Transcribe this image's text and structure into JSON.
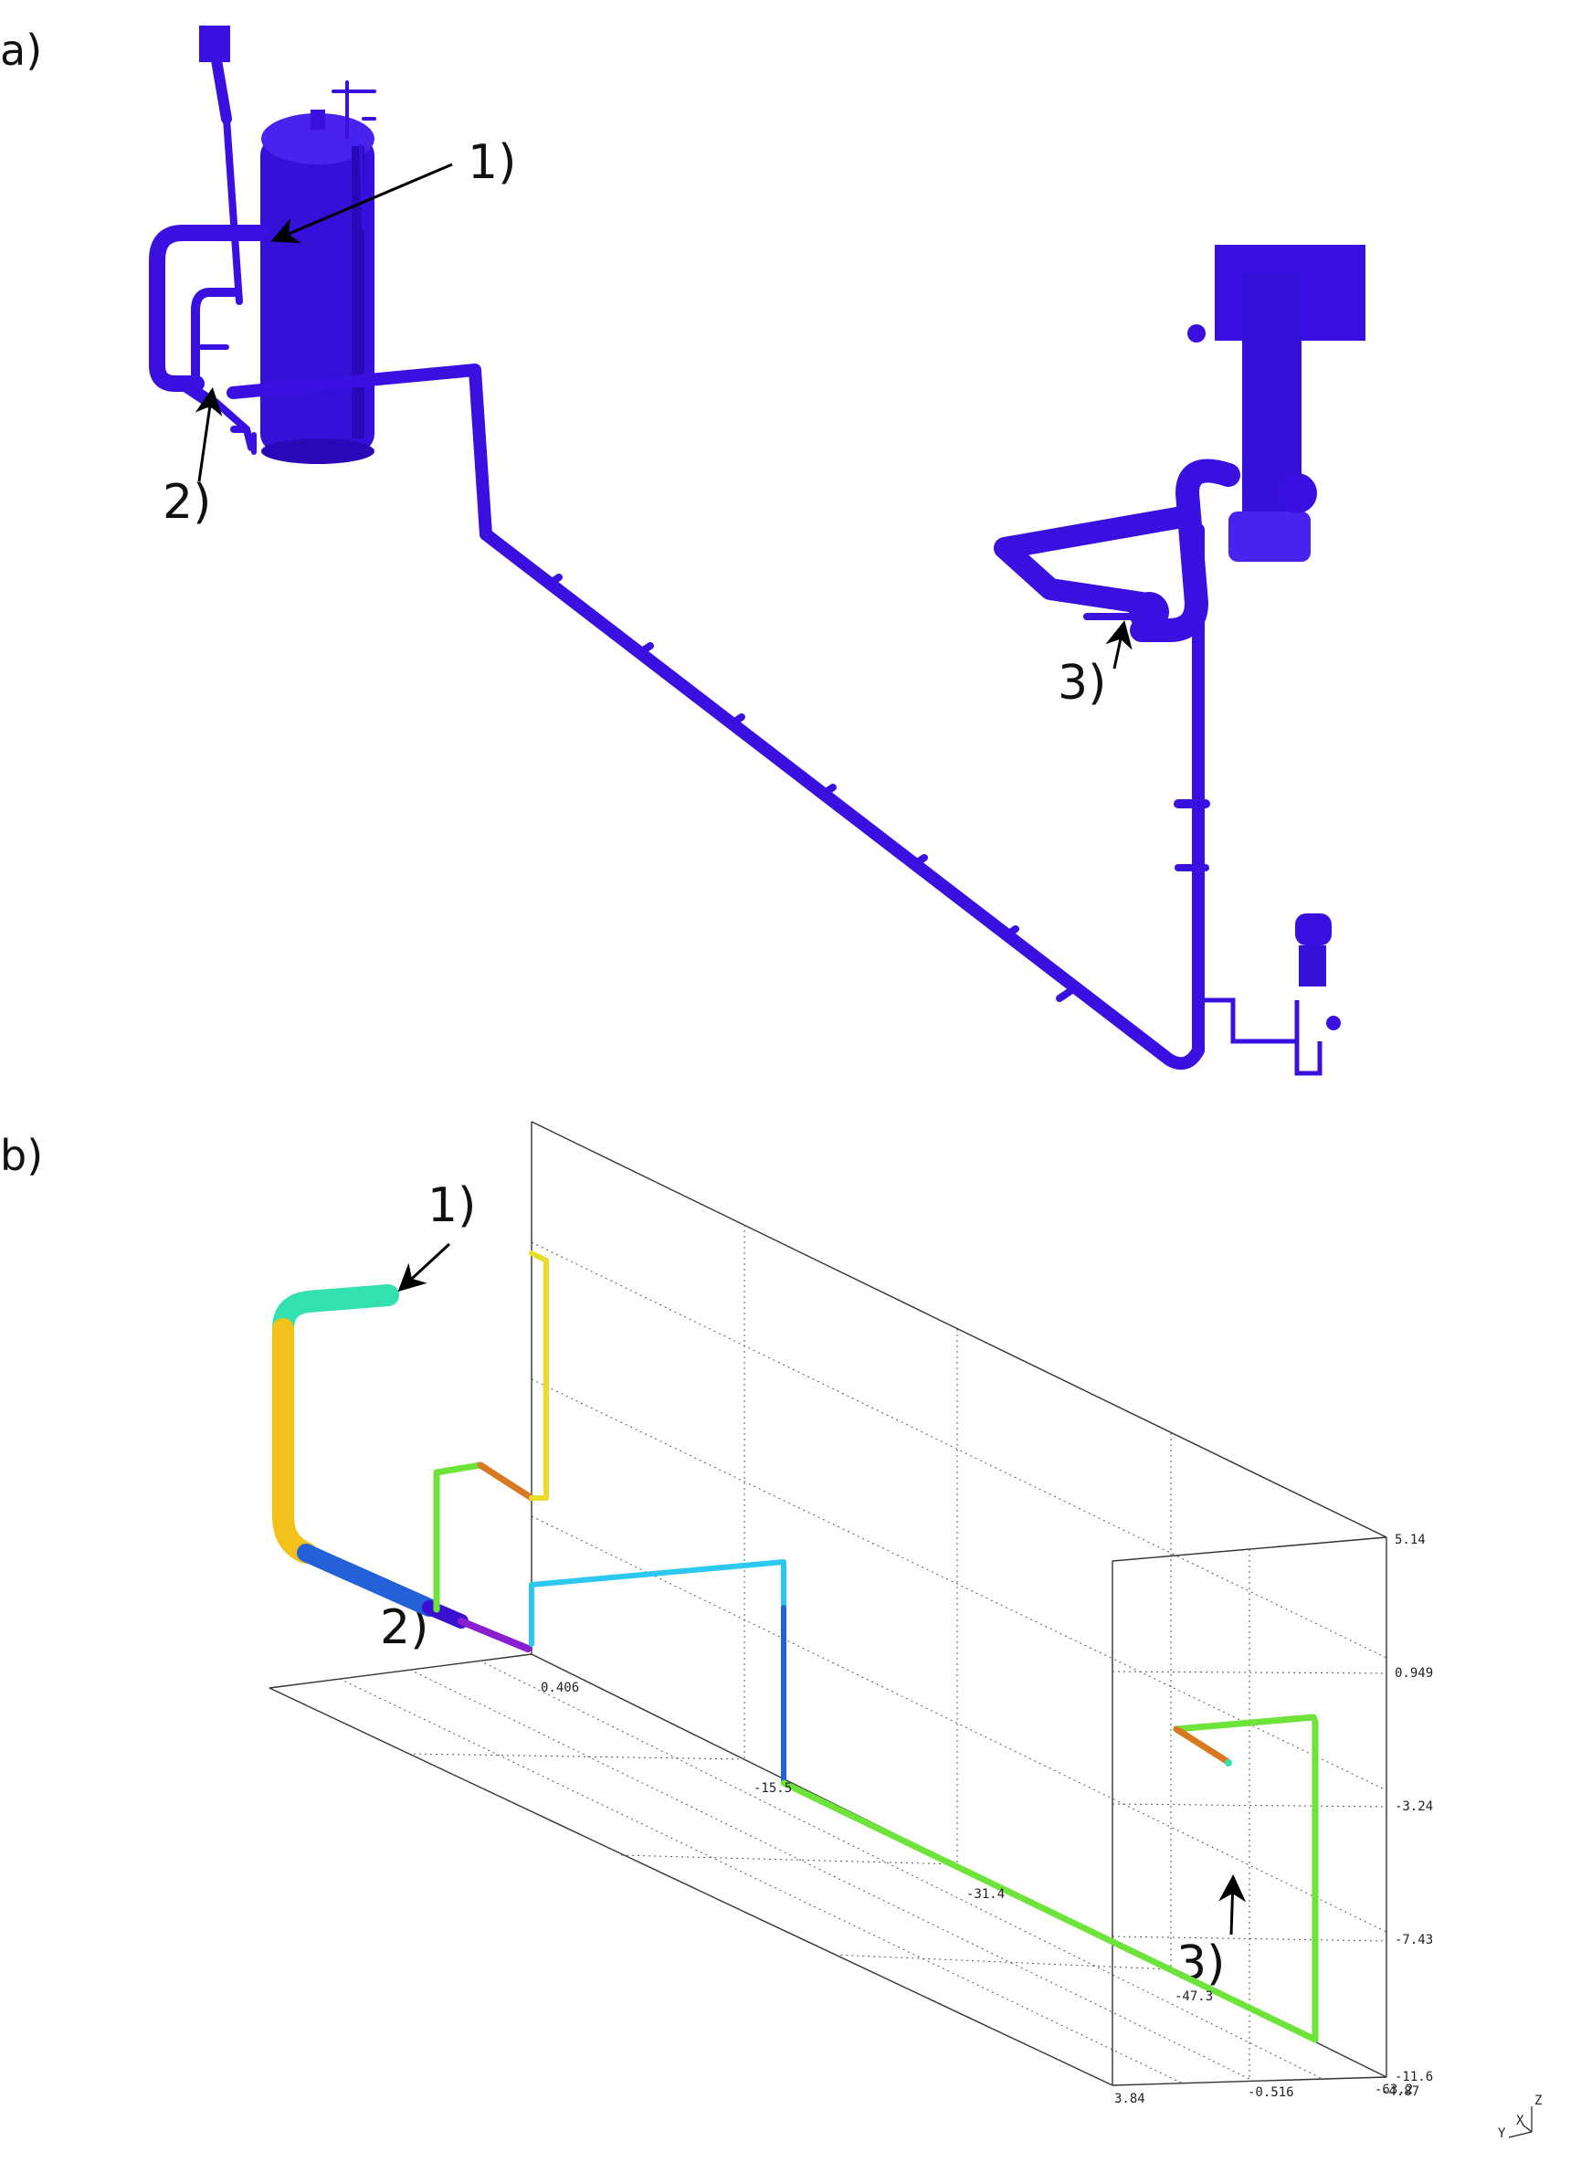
{
  "panel_a": {
    "label": "a)",
    "callouts": [
      "1)",
      "2)",
      "3)"
    ]
  },
  "panel_b": {
    "label": "b)",
    "callouts": [
      "1)",
      "2)",
      "3)"
    ],
    "ticks": {
      "front_x": [
        "0.406",
        "-15.5",
        "-31.4",
        "-47.3",
        "-63.2"
      ],
      "right_y": [
        "3.84",
        "-0.516",
        "-4.87"
      ],
      "z": [
        "5.14",
        "0.949",
        "-3.24",
        "-7.43",
        "-11.6"
      ]
    },
    "axis_letters": {
      "z": "Z",
      "y": "Y",
      "x": "X"
    }
  },
  "colors": {
    "model_blue": "#3a10e0",
    "model_dark": "#1f0aa8",
    "teal": "#33e0b0",
    "yellow": "#f2c21a",
    "blue": "#2460d8",
    "purple": "#8a1fd0",
    "green": "#6ee43a",
    "orange": "#d8781f",
    "cyan": "#2cc8ee"
  }
}
